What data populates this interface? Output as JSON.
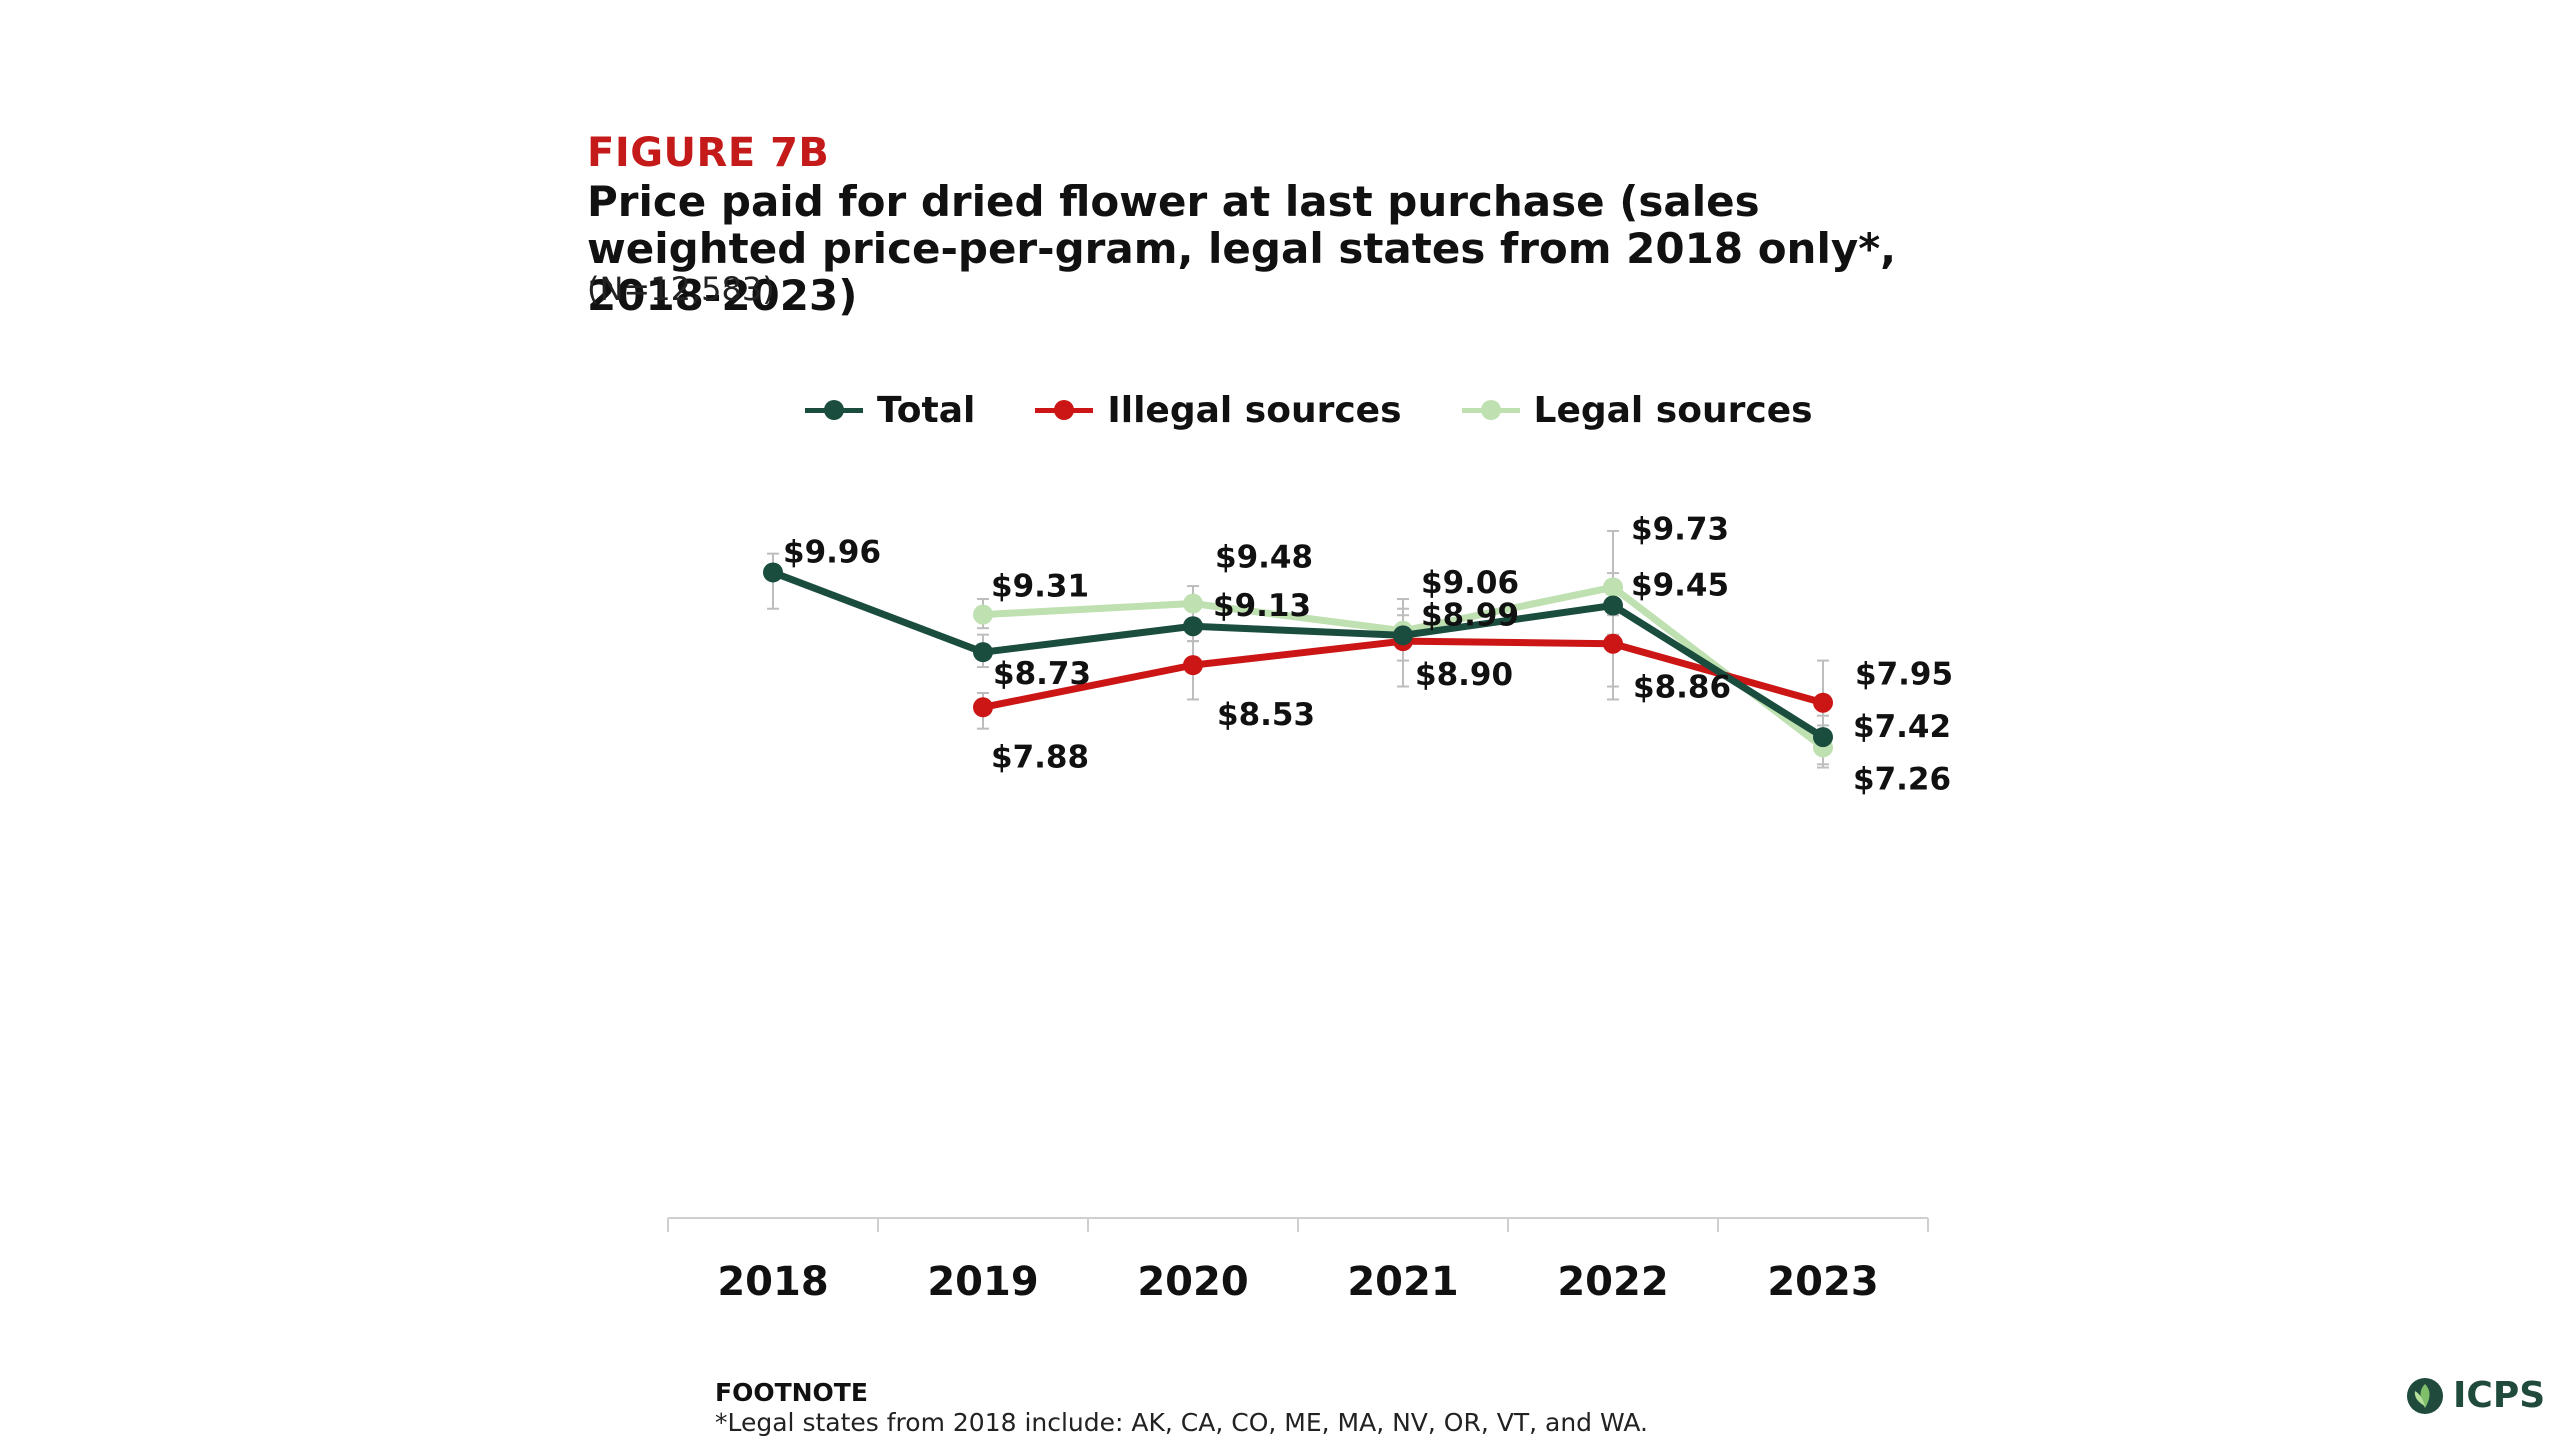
{
  "header": {
    "figure_label": "FIGURE 7B",
    "title": "Price paid for dried flower at last purchase (sales weighted price-per-gram, legal states from 2018 only*, 2018-2023)",
    "subtitle": "(N=12,583)"
  },
  "colors": {
    "total": "#1b4d3e",
    "illegal": "#cc1515",
    "legal": "#bfe0b0",
    "label_accent": "#c41a1a"
  },
  "chart_data": {
    "type": "line",
    "categories": [
      "2018",
      "2019",
      "2020",
      "2021",
      "2022",
      "2023"
    ],
    "ylim": [
      0,
      10.8
    ],
    "legend_position": "top-center",
    "grid": false,
    "error_bars": true,
    "series": [
      {
        "key": "total",
        "name": "Total",
        "values": [
          9.96,
          8.73,
          9.13,
          8.99,
          9.45,
          7.42
        ],
        "labels": [
          "$9.96",
          "$8.73",
          "$9.13",
          "$8.99",
          "$9.45",
          "$7.42"
        ],
        "err_low": [
          9.4,
          8.5,
          8.9,
          8.2,
          8.0,
          7.0
        ],
        "err_high": [
          10.25,
          9.0,
          9.45,
          9.4,
          9.95,
          7.75
        ]
      },
      {
        "key": "illegal",
        "name": "Illegal sources",
        "values": [
          null,
          7.88,
          8.53,
          8.9,
          8.86,
          7.95
        ],
        "labels": [
          "",
          "$7.88",
          "$8.53",
          "$8.90",
          "$8.86",
          "$7.95"
        ],
        "err_low": [
          null,
          7.55,
          8.0,
          8.2,
          8.2,
          7.3
        ],
        "err_high": [
          null,
          8.1,
          8.9,
          9.3,
          9.3,
          8.6
        ]
      },
      {
        "key": "legal",
        "name": "Legal sources",
        "values": [
          null,
          9.31,
          9.48,
          9.06,
          9.73,
          7.26
        ],
        "labels": [
          "",
          "$9.31",
          "$9.48",
          "$9.06",
          "$9.73",
          "$7.26"
        ],
        "err_low": [
          null,
          9.1,
          9.2,
          8.6,
          9.0,
          6.95
        ],
        "err_high": [
          null,
          9.55,
          9.75,
          9.55,
          10.6,
          7.6
        ]
      }
    ]
  },
  "footnote": {
    "heading": "FOOTNOTE",
    "text": "*Legal states from 2018 include: AK, CA, CO, ME, MA, NV, OR, VT, and WA."
  },
  "logo": {
    "text": "ICPS",
    "icon": "leaf-icon"
  }
}
